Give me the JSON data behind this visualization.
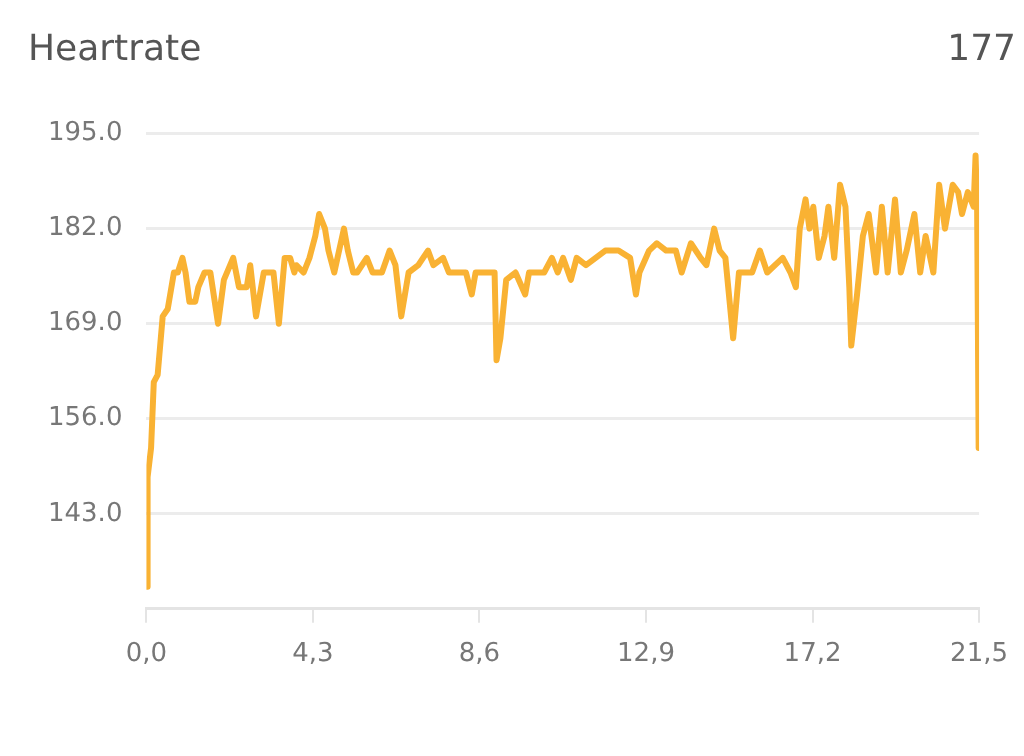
{
  "chart_data": {
    "type": "line",
    "title": "Heartrate",
    "annotations": [
      "177"
    ],
    "series": [
      {
        "color": "#f9b233",
        "x": [
          0.0,
          0.03,
          0.12,
          0.19,
          0.29,
          0.42,
          0.55,
          0.71,
          0.81,
          0.93,
          1.01,
          1.11,
          1.26,
          1.34,
          1.5,
          1.65,
          1.85,
          2.0,
          2.24,
          2.39,
          2.59,
          2.68,
          2.83,
          3.03,
          3.28,
          3.42,
          3.57,
          3.71,
          3.82,
          3.87,
          4.06,
          4.21,
          4.36,
          4.46,
          4.61,
          4.7,
          4.85,
          5.1,
          5.2,
          5.34,
          5.44,
          5.69,
          5.84,
          6.08,
          6.28,
          6.43,
          6.58,
          6.77,
          7.02,
          7.27,
          7.41,
          7.66,
          7.81,
          8.25,
          8.4,
          8.5,
          8.99,
          9.04,
          9.14,
          9.29,
          9.53,
          9.78,
          9.88,
          10.27,
          10.47,
          10.62,
          10.76,
          10.96,
          11.11,
          11.35,
          11.6,
          11.85,
          12.19,
          12.49,
          12.64,
          12.73,
          12.98,
          13.18,
          13.42,
          13.67,
          13.82,
          14.06,
          14.31,
          14.46,
          14.66,
          14.8,
          14.95,
          15.15,
          15.3,
          15.64,
          15.84,
          16.03,
          16.43,
          16.63,
          16.77,
          16.87,
          17.02,
          17.12,
          17.22,
          17.36,
          17.51,
          17.61,
          17.76,
          17.91,
          18.05,
          18.15,
          18.2,
          18.35,
          18.5,
          18.65,
          18.84,
          18.99,
          19.14,
          19.33,
          19.48,
          19.63,
          19.83,
          19.98,
          20.12,
          20.32,
          20.47,
          20.62,
          20.82,
          20.96,
          21.06,
          21.21,
          21.36,
          21.41,
          21.45,
          21.49
        ],
        "values": [
          133,
          148,
          152,
          161,
          162,
          170,
          171,
          176,
          176,
          178,
          176,
          172,
          172,
          174,
          176,
          176,
          169,
          175,
          178,
          174,
          174,
          177,
          170,
          176,
          176,
          169,
          178,
          178,
          176,
          177,
          176,
          178,
          181,
          184,
          182,
          179,
          176,
          182,
          179,
          176,
          176,
          178,
          176,
          176,
          179,
          177,
          170,
          176,
          177,
          179,
          177,
          178,
          176,
          176,
          173,
          176,
          176,
          164,
          167,
          175,
          176,
          173,
          176,
          176,
          178,
          176,
          178,
          175,
          178,
          177,
          178,
          179,
          179,
          178,
          173,
          176,
          179,
          180,
          179,
          179,
          176,
          180,
          178,
          177,
          182,
          179,
          178,
          167,
          176,
          176,
          179,
          176,
          178,
          176,
          174,
          182,
          186,
          182,
          185,
          178,
          181,
          185,
          178,
          188,
          185,
          174,
          166,
          173,
          181,
          184,
          176,
          185,
          176,
          186,
          176,
          179,
          184,
          176,
          181,
          176,
          188,
          182,
          188,
          187,
          184,
          187,
          185,
          192,
          185,
          152
        ]
      }
    ],
    "xlim": [
      0,
      21.5
    ],
    "xticks": [
      {
        "value": 0,
        "label": "0,0"
      },
      {
        "value": 4.3,
        "label": "4,3"
      },
      {
        "value": 8.6,
        "label": "8,6"
      },
      {
        "value": 12.9,
        "label": "12,9"
      },
      {
        "value": 17.2,
        "label": "17,2"
      },
      {
        "value": 21.5,
        "label": "21,5"
      }
    ],
    "ylim": [
      130,
      195
    ],
    "yticks": [
      {
        "value": 130,
        "label": null
      },
      {
        "value": 143,
        "label": "143.0"
      },
      {
        "value": 156,
        "label": "156.0"
      },
      {
        "value": 169,
        "label": "169.0"
      },
      {
        "value": 182,
        "label": "182.0"
      },
      {
        "value": 195,
        "label": "195.0"
      }
    ],
    "grid": "y",
    "marker": "none",
    "line_style": "solid",
    "legend": false
  }
}
